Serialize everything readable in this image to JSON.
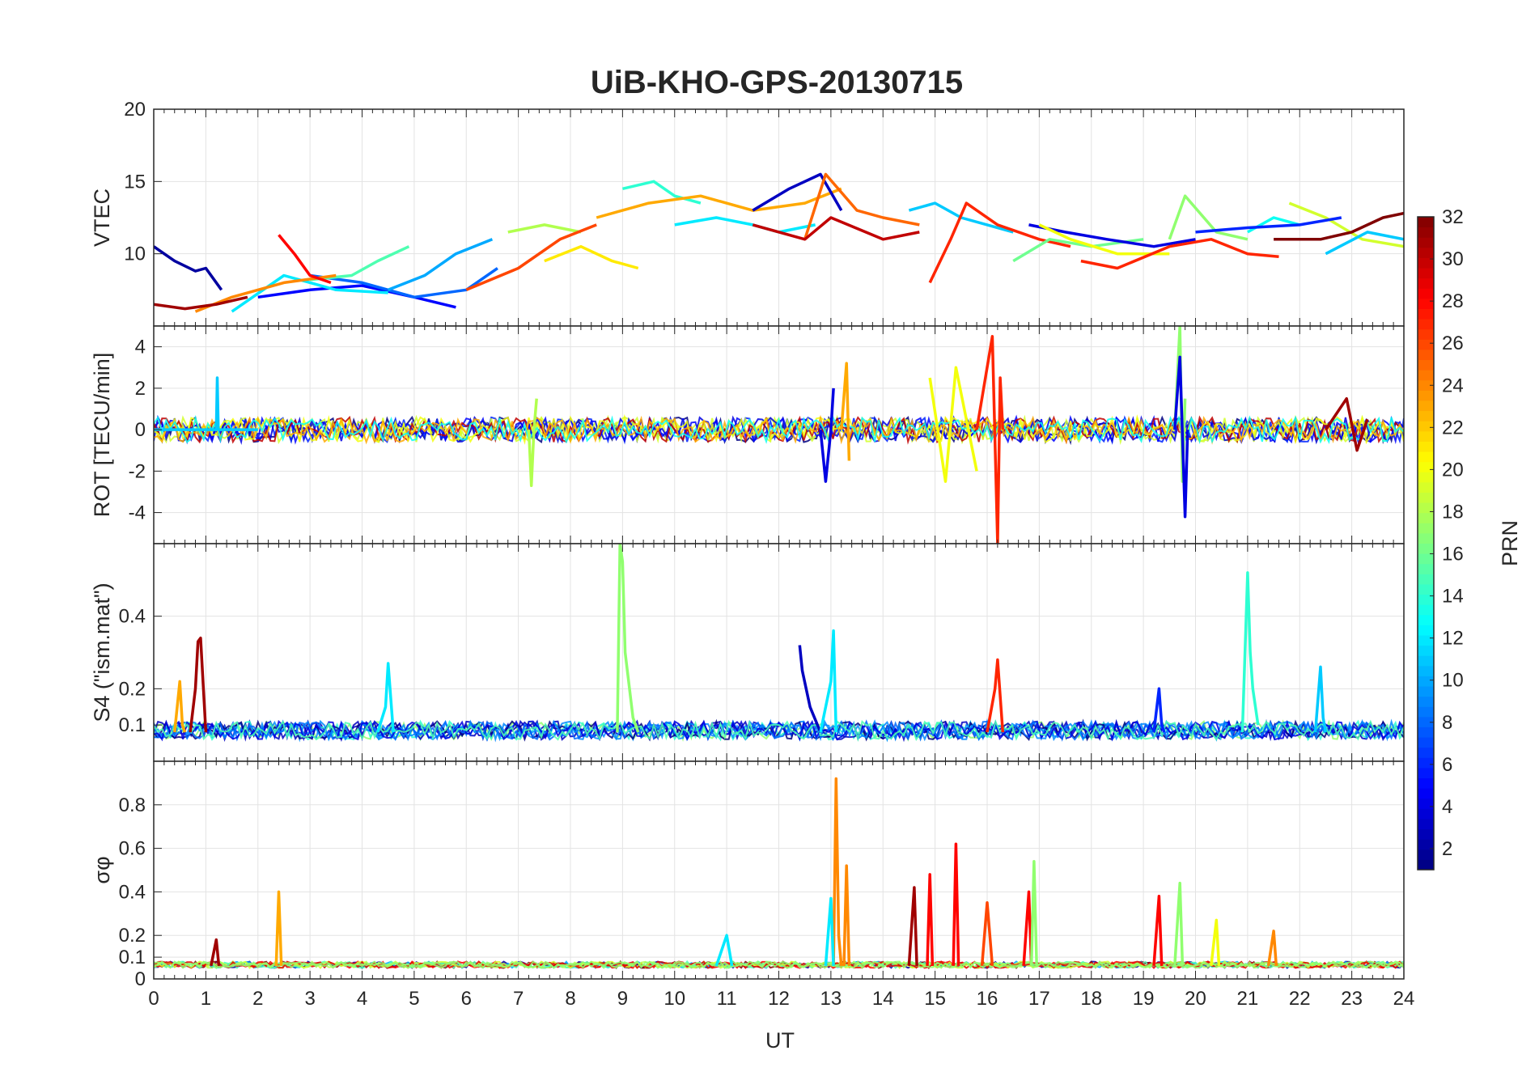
{
  "chart_data": {
    "type": "line",
    "title": "UiB-KHO-GPS-20130715",
    "xlabel": "UT",
    "xlim": [
      0,
      24
    ],
    "xticks": [
      0,
      1,
      2,
      3,
      4,
      5,
      6,
      7,
      8,
      9,
      10,
      11,
      12,
      13,
      14,
      15,
      16,
      17,
      18,
      19,
      20,
      21,
      22,
      23,
      24
    ],
    "grid": true,
    "colorbar": {
      "label": "PRN",
      "colormap": "jet",
      "range": [
        1,
        32
      ],
      "ticks": [
        2,
        4,
        6,
        8,
        10,
        12,
        14,
        16,
        18,
        20,
        22,
        24,
        26,
        28,
        30,
        32
      ]
    },
    "panels": [
      {
        "id": "vtec",
        "ylabel": "VTEC",
        "ylim": [
          5,
          20
        ],
        "yticks": [
          10,
          15,
          20
        ],
        "series": [
          {
            "prn": 2,
            "x": [
              0,
              0.4,
              0.8,
              1.0,
              1.3
            ],
            "y": [
              10.5,
              9.5,
              8.8,
              9.0,
              7.5
            ]
          },
          {
            "prn": 5,
            "x": [
              2.0,
              3.0,
              4.0,
              5.0,
              5.8
            ],
            "y": [
              7.0,
              7.5,
              7.8,
              7.0,
              6.3
            ]
          },
          {
            "prn": 8,
            "x": [
              3.0,
              4.0,
              5.0,
              6.0,
              6.6
            ],
            "y": [
              8.5,
              8.0,
              7.0,
              7.5,
              9.0
            ]
          },
          {
            "prn": 10,
            "x": [
              4.5,
              5.2,
              5.8,
              6.5
            ],
            "y": [
              7.5,
              8.5,
              10.0,
              11.0
            ]
          },
          {
            "prn": 12,
            "x": [
              1.5,
              2.5,
              3.5,
              4.5
            ],
            "y": [
              6.0,
              8.5,
              7.5,
              7.3
            ]
          },
          {
            "prn": 15,
            "x": [
              3.0,
              3.8,
              4.3,
              4.9
            ],
            "y": [
              8.2,
              8.5,
              9.5,
              10.5
            ]
          },
          {
            "prn": 18,
            "x": [
              6.8,
              7.5,
              8.2
            ],
            "y": [
              11.5,
              12.0,
              11.5
            ]
          },
          {
            "prn": 21,
            "x": [
              7.5,
              8.2,
              8.8,
              9.3
            ],
            "y": [
              9.5,
              10.5,
              9.5,
              9.0
            ]
          },
          {
            "prn": 24,
            "x": [
              0.8,
              1.5,
              2.5,
              3.5
            ],
            "y": [
              6.0,
              7.0,
              8.0,
              8.5
            ]
          },
          {
            "prn": 26,
            "x": [
              6.0,
              7.0,
              7.8,
              8.5
            ],
            "y": [
              7.5,
              9.0,
              11.0,
              12.0
            ]
          },
          {
            "prn": 28,
            "x": [
              2.4,
              2.7,
              3.0,
              3.4
            ],
            "y": [
              11.3,
              10.0,
              8.5,
              8.0
            ]
          },
          {
            "prn": 31,
            "x": [
              0,
              0.6,
              1.2,
              1.8
            ],
            "y": [
              6.5,
              6.2,
              6.5,
              7.0
            ]
          },
          {
            "prn": 14,
            "x": [
              9.0,
              9.6,
              10.0,
              10.5
            ],
            "y": [
              14.5,
              15.0,
              14.0,
              13.5
            ]
          },
          {
            "prn": 12,
            "x": [
              10.0,
              10.8,
              11.5,
              12.0,
              12.7
            ],
            "y": [
              12.0,
              12.5,
              12.0,
              11.5,
              12.0
            ]
          },
          {
            "prn": 23,
            "x": [
              8.5,
              9.5,
              10.5,
              11.5,
              12.5,
              13.2
            ],
            "y": [
              12.5,
              13.5,
              14.0,
              13.0,
              13.5,
              14.5
            ]
          },
          {
            "prn": 3,
            "x": [
              11.5,
              12.2,
              12.8,
              13.2
            ],
            "y": [
              13.0,
              14.5,
              15.5,
              13.0
            ]
          },
          {
            "prn": 25,
            "x": [
              12.5,
              12.9,
              13.5,
              14.0,
              14.7
            ],
            "y": [
              11.0,
              15.5,
              13.0,
              12.5,
              12.0
            ]
          },
          {
            "prn": 30,
            "x": [
              11.5,
              12.5,
              13.0,
              14.0,
              14.7
            ],
            "y": [
              12.0,
              11.0,
              12.5,
              11.0,
              11.5
            ]
          },
          {
            "prn": 11,
            "x": [
              14.5,
              15.0,
              15.5,
              16.0,
              16.5
            ],
            "y": [
              13.0,
              13.5,
              12.5,
              12.0,
              11.5
            ]
          },
          {
            "prn": 27,
            "x": [
              14.9,
              15.3,
              15.6,
              16.2,
              17.0,
              17.6
            ],
            "y": [
              8.0,
              11.0,
              13.5,
              12.0,
              11.0,
              10.5
            ]
          },
          {
            "prn": 16,
            "x": [
              16.5,
              17.2,
              18.0,
              19.0
            ],
            "y": [
              9.5,
              11.0,
              10.5,
              11.0
            ]
          },
          {
            "prn": 4,
            "x": [
              16.8,
              17.5,
              18.3,
              19.2,
              20.0
            ],
            "y": [
              12.0,
              11.5,
              11.0,
              10.5,
              11.0
            ]
          },
          {
            "prn": 20,
            "x": [
              17.0,
              17.6,
              18.5,
              19.5
            ],
            "y": [
              12.0,
              11.0,
              10.0,
              10.0
            ]
          },
          {
            "prn": 27,
            "x": [
              17.8,
              18.5,
              19.5,
              20.3,
              21.0,
              21.6
            ],
            "y": [
              9.5,
              9.0,
              10.5,
              11.0,
              10.0,
              9.8
            ]
          },
          {
            "prn": 17,
            "x": [
              19.5,
              19.8,
              20.4,
              21.0
            ],
            "y": [
              11.0,
              14.0,
              11.5,
              11.0
            ]
          },
          {
            "prn": 13,
            "x": [
              21.0,
              21.5,
              22.0
            ],
            "y": [
              11.5,
              12.5,
              12.0
            ]
          },
          {
            "prn": 19,
            "x": [
              21.8,
              22.5,
              23.2,
              24.0
            ],
            "y": [
              13.5,
              12.5,
              11.0,
              10.5
            ]
          },
          {
            "prn": 6,
            "x": [
              20.0,
              21.0,
              22.0,
              22.8
            ],
            "y": [
              11.5,
              11.8,
              12.0,
              12.5
            ]
          },
          {
            "prn": 32,
            "x": [
              21.5,
              22.4,
              23.0,
              23.6,
              24.0
            ],
            "y": [
              11.0,
              11.0,
              11.5,
              12.5,
              12.8
            ]
          },
          {
            "prn": 11,
            "x": [
              22.5,
              23.3,
              24.0
            ],
            "y": [
              10.0,
              11.5,
              11.0
            ]
          }
        ]
      },
      {
        "id": "rot",
        "ylabel": "ROT [TECU/min]",
        "ylim": [
          -5.5,
          5
        ],
        "yticks": [
          -4,
          -2,
          0,
          2,
          4
        ],
        "series": [
          {
            "prn": 11,
            "x": [
              0,
              1.2,
              1.22,
              1.24,
              2.0
            ],
            "y": [
              0,
              0,
              2.5,
              0,
              0
            ]
          },
          {
            "prn": 18,
            "x": [
              7.2,
              7.25,
              7.3,
              7.35
            ],
            "y": [
              0,
              -2.7,
              0,
              1.5
            ]
          },
          {
            "prn": 4,
            "x": [
              12.8,
              12.9,
              13.0,
              13.05
            ],
            "y": [
              0,
              -2.5,
              0,
              2.0
            ]
          },
          {
            "prn": 23,
            "x": [
              13.2,
              13.3,
              13.35
            ],
            "y": [
              0,
              3.2,
              -1.5
            ]
          },
          {
            "prn": 27,
            "x": [
              15.8,
              16.1,
              16.2,
              16.25,
              16.3
            ],
            "y": [
              0,
              4.5,
              -5.5,
              2.5,
              0
            ]
          },
          {
            "prn": 20,
            "x": [
              14.9,
              15.2,
              15.4,
              15.8
            ],
            "y": [
              2.5,
              -2.5,
              3.0,
              -2.0
            ]
          },
          {
            "prn": 17,
            "x": [
              19.6,
              19.7,
              19.75,
              19.8
            ],
            "y": [
              0,
              5.0,
              -2.5,
              1.5
            ]
          },
          {
            "prn": 4,
            "x": [
              19.6,
              19.7,
              19.8,
              19.85
            ],
            "y": [
              0,
              3.5,
              -4.2,
              0
            ]
          },
          {
            "prn": 31,
            "x": [
              22.5,
              22.9,
              23.1,
              23.3
            ],
            "y": [
              0,
              1.5,
              -1.0,
              0.5
            ]
          }
        ]
      },
      {
        "id": "s4",
        "ylabel": "S4 (\"ism.mat\")",
        "ylim": [
          0,
          0.6
        ],
        "yticks": [
          0.1,
          0.2,
          0.4
        ],
        "series": [
          {
            "prn": 31,
            "x": [
              0.7,
              0.8,
              0.85,
              0.9,
              1.0
            ],
            "y": [
              0.08,
              0.2,
              0.33,
              0.34,
              0.08
            ]
          },
          {
            "prn": 17,
            "x": [
              8.9,
              8.95,
              9.0,
              9.05,
              9.2,
              9.3
            ],
            "y": [
              0.08,
              0.6,
              0.55,
              0.3,
              0.12,
              0.08
            ]
          },
          {
            "prn": 3,
            "x": [
              12.4,
              12.45,
              12.6,
              12.8
            ],
            "y": [
              0.32,
              0.25,
              0.15,
              0.08
            ]
          },
          {
            "prn": 12,
            "x": [
              12.8,
              13.0,
              13.05,
              13.1
            ],
            "y": [
              0.08,
              0.22,
              0.36,
              0.08
            ]
          },
          {
            "prn": 14,
            "x": [
              20.9,
              21.0,
              21.05,
              21.1,
              21.2
            ],
            "y": [
              0.08,
              0.52,
              0.3,
              0.2,
              0.1
            ]
          },
          {
            "prn": 12,
            "x": [
              4.3,
              4.45,
              4.5,
              4.6
            ],
            "y": [
              0.08,
              0.15,
              0.27,
              0.08
            ]
          },
          {
            "prn": 27,
            "x": [
              16.0,
              16.15,
              16.2,
              16.3
            ],
            "y": [
              0.08,
              0.2,
              0.28,
              0.08
            ]
          },
          {
            "prn": 6,
            "x": [
              19.2,
              19.3,
              19.35,
              19.4
            ],
            "y": [
              0.08,
              0.2,
              0.1,
              0.08
            ]
          },
          {
            "prn": 11,
            "x": [
              22.3,
              22.4,
              22.45,
              22.5
            ],
            "y": [
              0.08,
              0.26,
              0.12,
              0.08
            ]
          },
          {
            "prn": 23,
            "x": [
              0.4,
              0.5,
              0.55,
              0.6
            ],
            "y": [
              0.08,
              0.22,
              0.1,
              0.08
            ]
          }
        ]
      },
      {
        "id": "sigma_phi",
        "ylabel": "σφ",
        "ylim": [
          0,
          1.0
        ],
        "yticks": [
          0,
          0.1,
          0.2,
          0.4,
          0.6,
          0.8
        ],
        "series": [
          {
            "prn": 24,
            "x": [
              13.05,
              13.1,
              13.15,
              13.2
            ],
            "y": [
              0.06,
              0.92,
              0.2,
              0.06
            ]
          },
          {
            "prn": 24,
            "x": [
              13.25,
              13.3,
              13.35
            ],
            "y": [
              0.06,
              0.52,
              0.06
            ]
          },
          {
            "prn": 12,
            "x": [
              12.9,
              13.0,
              13.05
            ],
            "y": [
              0.06,
              0.37,
              0.06
            ]
          },
          {
            "prn": 23,
            "x": [
              2.35,
              2.4,
              2.45
            ],
            "y": [
              0.06,
              0.4,
              0.06
            ]
          },
          {
            "prn": 31,
            "x": [
              14.5,
              14.6,
              14.65
            ],
            "y": [
              0.06,
              0.42,
              0.06
            ]
          },
          {
            "prn": 28,
            "x": [
              14.85,
              14.9,
              14.95
            ],
            "y": [
              0.06,
              0.48,
              0.06
            ]
          },
          {
            "prn": 28,
            "x": [
              15.35,
              15.4,
              15.45
            ],
            "y": [
              0.06,
              0.62,
              0.06
            ]
          },
          {
            "prn": 26,
            "x": [
              15.9,
              16.0,
              16.1
            ],
            "y": [
              0.06,
              0.35,
              0.06
            ]
          },
          {
            "prn": 28,
            "x": [
              16.7,
              16.8,
              16.85
            ],
            "y": [
              0.06,
              0.4,
              0.06
            ]
          },
          {
            "prn": 17,
            "x": [
              16.85,
              16.9,
              16.95
            ],
            "y": [
              0.06,
              0.54,
              0.06
            ]
          },
          {
            "prn": 28,
            "x": [
              19.2,
              19.3,
              19.35
            ],
            "y": [
              0.06,
              0.38,
              0.06
            ]
          },
          {
            "prn": 17,
            "x": [
              19.6,
              19.7,
              19.75
            ],
            "y": [
              0.06,
              0.44,
              0.06
            ]
          },
          {
            "prn": 20,
            "x": [
              20.3,
              20.4,
              20.45
            ],
            "y": [
              0.06,
              0.27,
              0.06
            ]
          },
          {
            "prn": 24,
            "x": [
              21.4,
              21.5,
              21.55
            ],
            "y": [
              0.06,
              0.22,
              0.06
            ]
          },
          {
            "prn": 12,
            "x": [
              10.8,
              11.0,
              11.1
            ],
            "y": [
              0.06,
              0.2,
              0.06
            ]
          },
          {
            "prn": 31,
            "x": [
              1.1,
              1.2,
              1.25
            ],
            "y": [
              0.06,
              0.18,
              0.06
            ]
          }
        ]
      }
    ]
  }
}
